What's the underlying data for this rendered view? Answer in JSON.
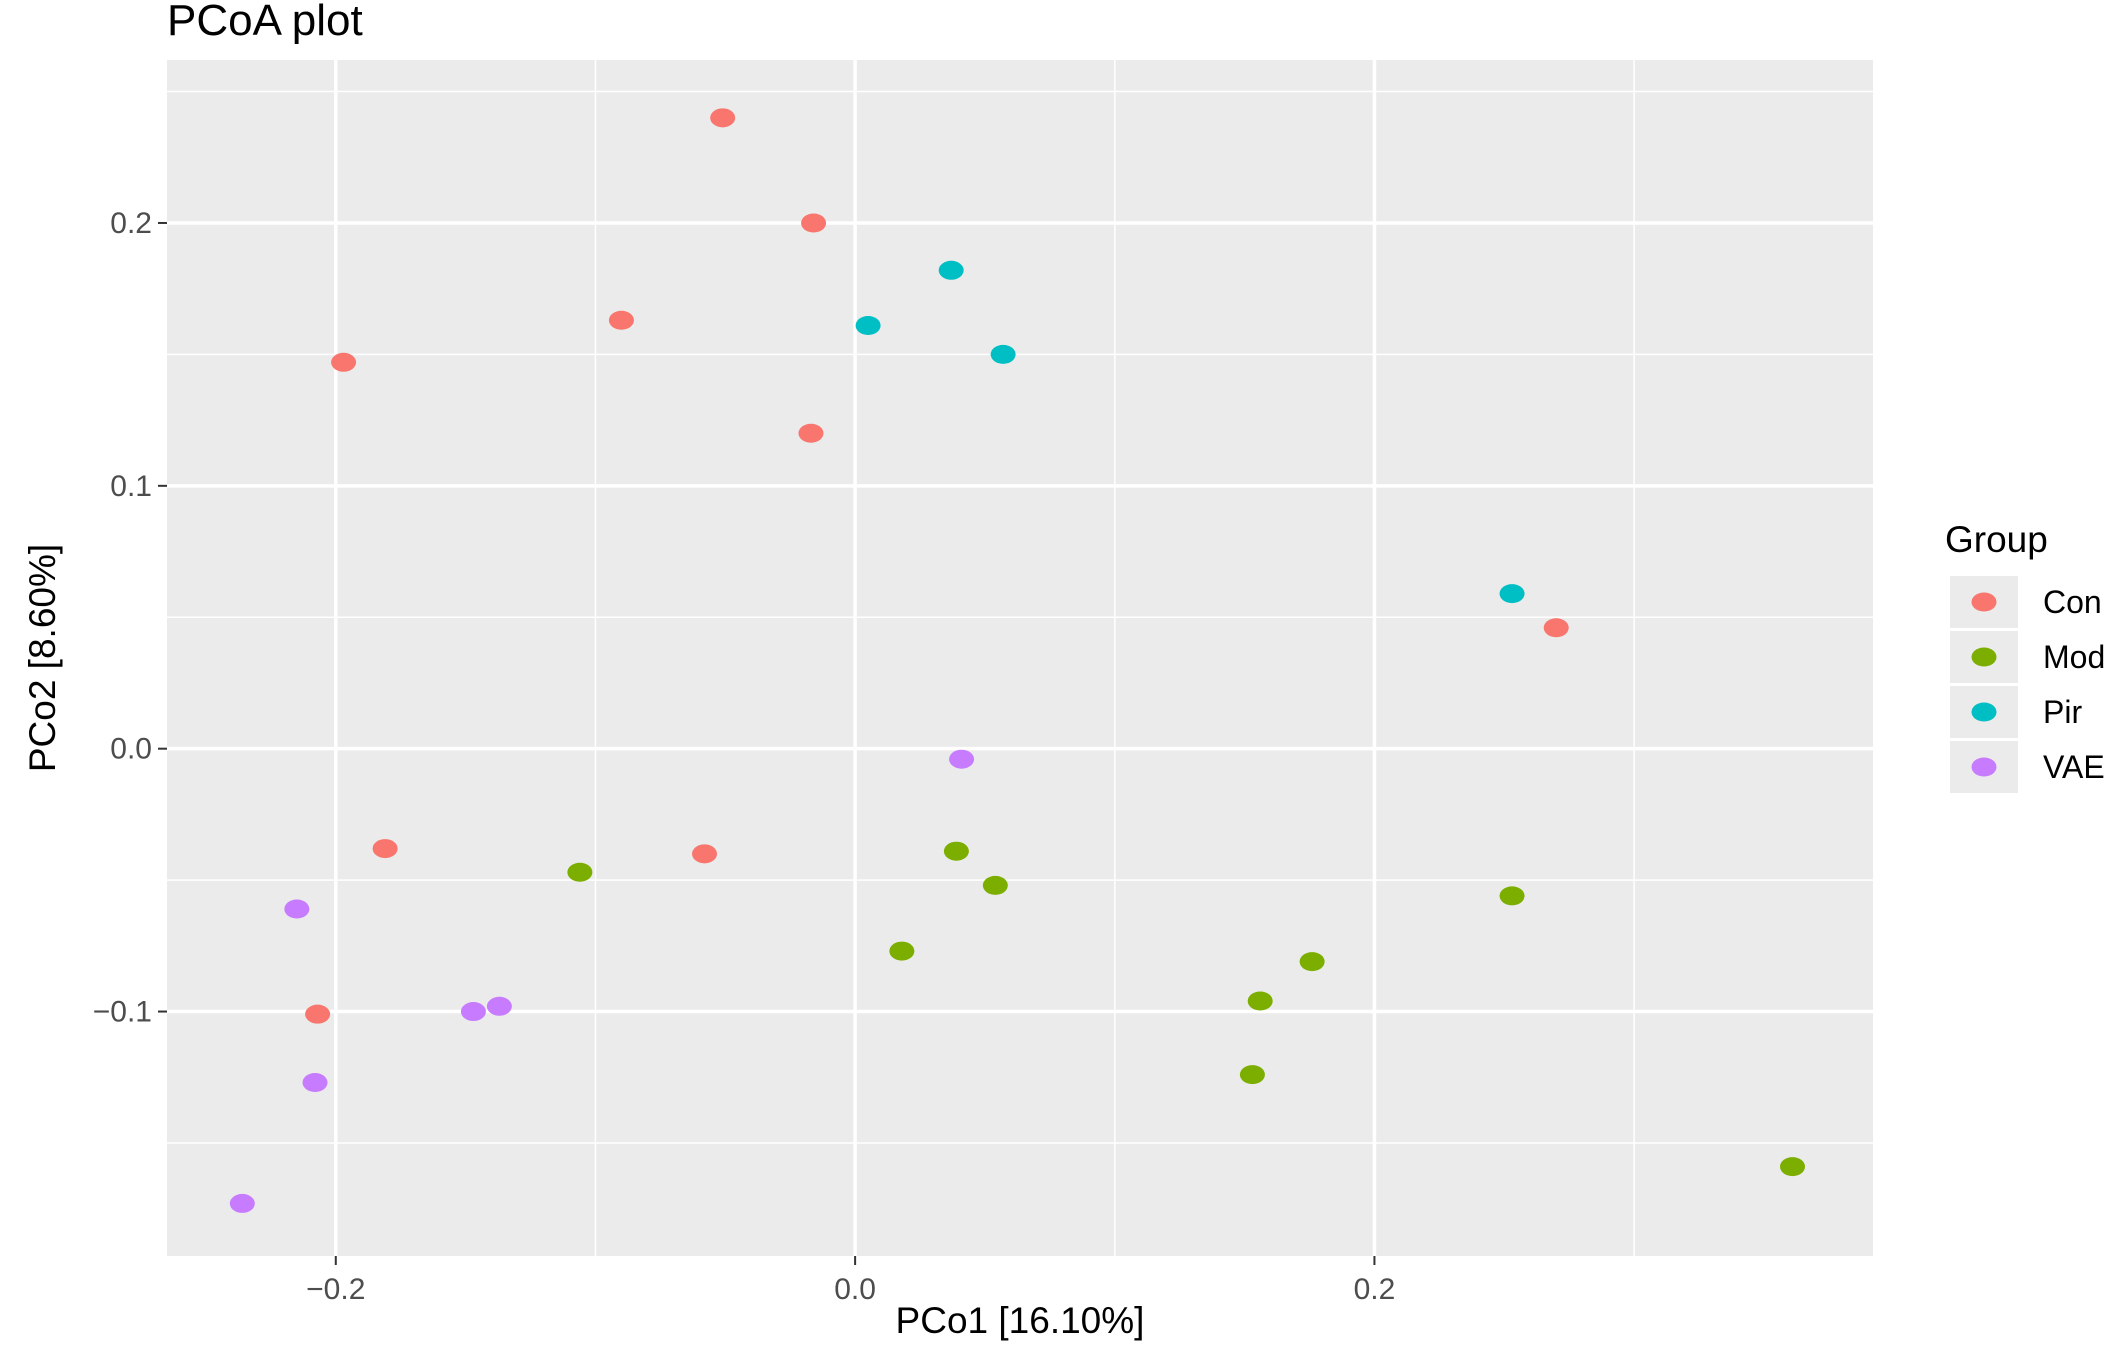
{
  "chart_data": {
    "type": "scatter",
    "title": "PCoA plot",
    "xlabel": "PCo1 [16.10%]",
    "ylabel": "PCo2 [8.60%]",
    "xlim": [
      -0.265,
      0.392
    ],
    "ylim": [
      -0.193,
      0.262
    ],
    "x_ticks": [
      -0.2,
      0.0,
      0.2
    ],
    "x_tick_labels": [
      "−0.2",
      "0.0",
      "0.2"
    ],
    "y_ticks": [
      -0.1,
      0.0,
      0.1,
      0.2
    ],
    "y_tick_labels": [
      "−0.1",
      "0.0",
      "0.1",
      "0.2"
    ],
    "grid": true,
    "background": "#EBEBEB",
    "legend": {
      "title": "Group",
      "placement": "right"
    },
    "series": [
      {
        "name": "Con",
        "color": "#F8766D",
        "points": [
          [
            -0.051,
            0.24
          ],
          [
            -0.016,
            0.2
          ],
          [
            -0.09,
            0.163
          ],
          [
            -0.197,
            0.147
          ],
          [
            -0.017,
            0.12
          ],
          [
            0.27,
            0.046
          ],
          [
            -0.181,
            -0.038
          ],
          [
            -0.058,
            -0.04
          ],
          [
            -0.207,
            -0.101
          ]
        ]
      },
      {
        "name": "Mod",
        "color": "#7CAE00",
        "points": [
          [
            -0.106,
            -0.047
          ],
          [
            0.039,
            -0.039
          ],
          [
            0.054,
            -0.052
          ],
          [
            0.253,
            -0.056
          ],
          [
            0.018,
            -0.077
          ],
          [
            0.176,
            -0.081
          ],
          [
            0.156,
            -0.096
          ],
          [
            0.153,
            -0.124
          ],
          [
            0.361,
            -0.159
          ]
        ]
      },
      {
        "name": "Pir",
        "color": "#00BFC4",
        "points": [
          [
            0.037,
            0.182
          ],
          [
            0.005,
            0.161
          ],
          [
            0.057,
            0.15
          ],
          [
            0.253,
            0.059
          ]
        ]
      },
      {
        "name": "VAE",
        "color": "#C77CFF",
        "points": [
          [
            0.041,
            -0.004
          ],
          [
            -0.215,
            -0.061
          ],
          [
            -0.147,
            -0.1
          ],
          [
            -0.137,
            -0.098
          ],
          [
            -0.208,
            -0.127
          ],
          [
            -0.236,
            -0.173
          ]
        ]
      }
    ]
  }
}
